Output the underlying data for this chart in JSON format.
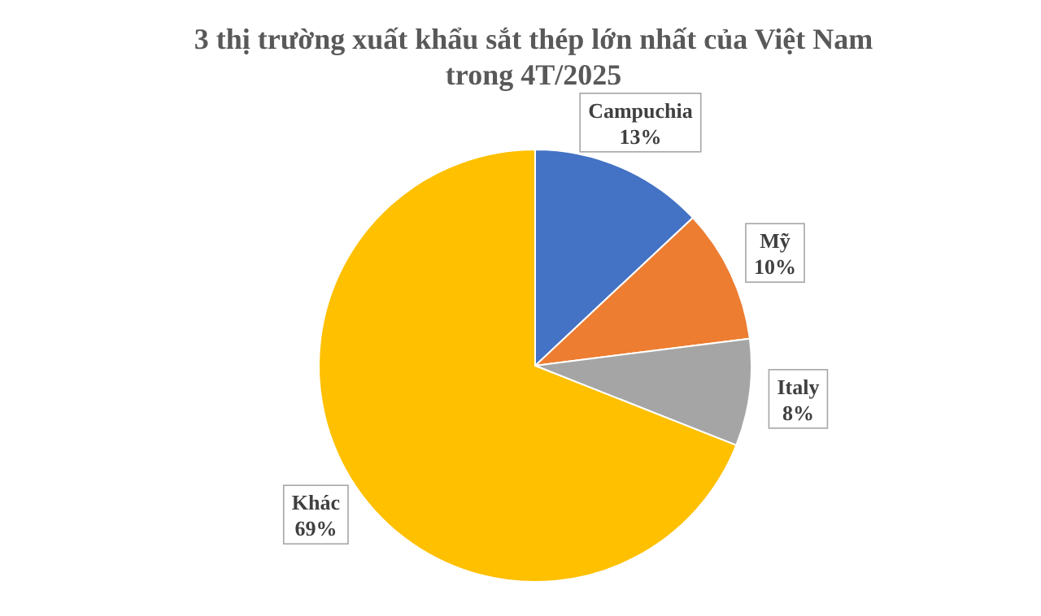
{
  "chart_data": {
    "type": "pie",
    "title": "3 thị trường xuất khẩu sắt thép lớn nhất của Việt Nam trong 4T/2025",
    "categories": [
      "Campuchia",
      "Mỹ",
      "Italy",
      "Khác"
    ],
    "values": [
      13,
      10,
      8,
      69
    ],
    "colors": [
      "#4472c4",
      "#ed7d31",
      "#a5a5a5",
      "#ffc000"
    ],
    "value_labels": [
      "13%",
      "10%",
      "8%",
      "69%"
    ],
    "legend": false
  }
}
